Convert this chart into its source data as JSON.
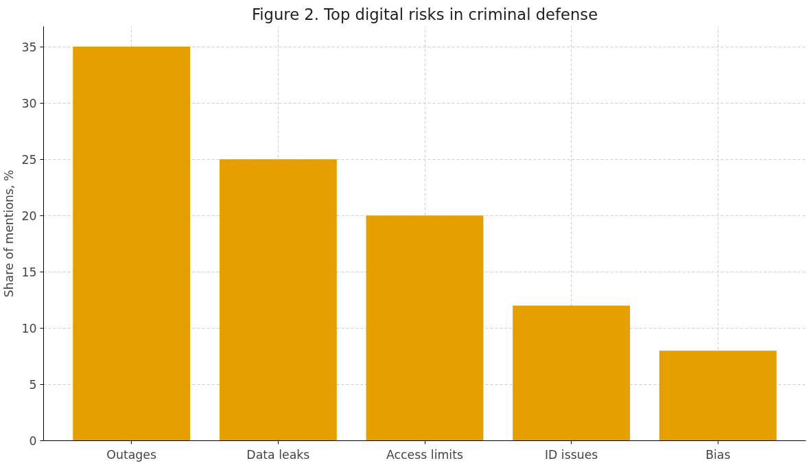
{
  "chart_data": {
    "type": "bar",
    "title": "Figure 2. Top digital risks in criminal defense",
    "ylabel": "Share of mentions, %",
    "categories": [
      "Outages",
      "Data leaks",
      "Access limits",
      "ID issues",
      "Bias"
    ],
    "values": [
      35,
      25,
      20,
      12,
      8
    ],
    "color": "#e69f00",
    "ylim": [
      0,
      36.8
    ],
    "yticks": [
      0,
      5,
      10,
      15,
      20,
      25,
      30,
      35
    ],
    "grid": true
  }
}
